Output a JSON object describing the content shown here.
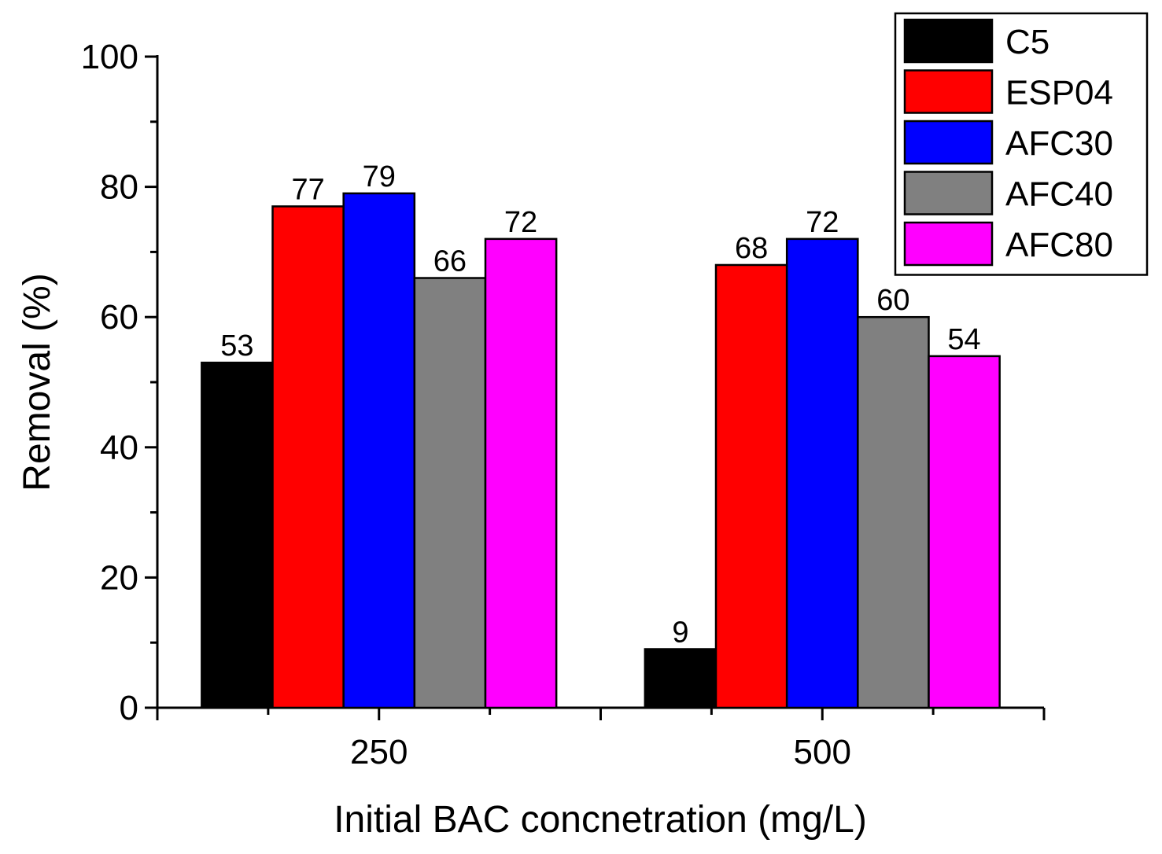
{
  "chart_data": {
    "type": "bar",
    "title": "",
    "xlabel": "Initial BAC concnetration (mg/L)",
    "ylabel": "Removal (%)",
    "categories": [
      "250",
      "500"
    ],
    "ylim": [
      0,
      100
    ],
    "yticks": [
      0,
      20,
      40,
      60,
      80,
      100
    ],
    "grid": false,
    "legend_position": "top-right",
    "series": [
      {
        "name": "C5",
        "color": "#000000",
        "values": [
          53,
          9
        ]
      },
      {
        "name": "ESP04",
        "color": "#ff0000",
        "values": [
          77,
          68
        ]
      },
      {
        "name": "AFC30",
        "color": "#0000ff",
        "values": [
          79,
          72
        ]
      },
      {
        "name": "AFC40",
        "color": "#808080",
        "values": [
          66,
          60
        ]
      },
      {
        "name": "AFC80",
        "color": "#ff00ff",
        "values": [
          72,
          54
        ]
      }
    ],
    "data_labels": [
      [
        "53",
        "9"
      ],
      [
        "77",
        "68"
      ],
      [
        "79",
        "72"
      ],
      [
        "66",
        "60"
      ],
      [
        "72",
        "54"
      ]
    ]
  }
}
